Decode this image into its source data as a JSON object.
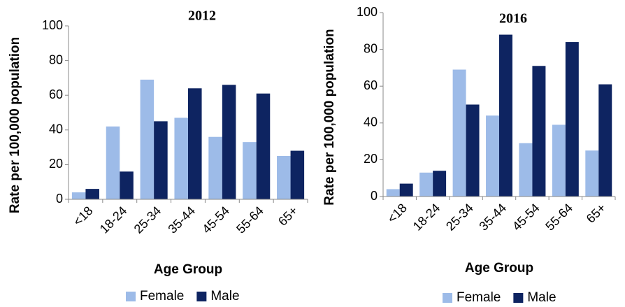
{
  "chart_data": [
    {
      "type": "bar",
      "title": "2012",
      "x_label": "Age Group",
      "y_label": "Rate per 100,000 population",
      "categories": [
        "<18",
        "18-24",
        "25-34",
        "35-44",
        "45-54",
        "55-64",
        "65+"
      ],
      "series": [
        {
          "name": "Female",
          "color": "#9dbbe8",
          "values": [
            4,
            42,
            69,
            47,
            36,
            33,
            25
          ]
        },
        {
          "name": "Male",
          "color": "#0e2461",
          "values": [
            6,
            16,
            45,
            64,
            66,
            61,
            28
          ]
        }
      ],
      "ylim": [
        0,
        100
      ],
      "yticks": [
        0,
        20,
        40,
        60,
        80,
        100
      ],
      "legend": "bottom"
    },
    {
      "type": "bar",
      "title": "2016",
      "x_label": "Age Group",
      "y_label": "Rate per 100,000 population",
      "categories": [
        "<18",
        "18-24",
        "25-34",
        "35-44",
        "45-54",
        "55-64",
        "65+"
      ],
      "series": [
        {
          "name": "Female",
          "color": "#9dbbe8",
          "values": [
            4,
            13,
            69,
            44,
            29,
            39,
            25
          ]
        },
        {
          "name": "Male",
          "color": "#0e2461",
          "values": [
            7,
            14,
            50,
            88,
            71,
            84,
            61
          ]
        }
      ],
      "ylim": [
        0,
        100
      ],
      "yticks": [
        0,
        20,
        40,
        60,
        80,
        100
      ],
      "legend": "bottom"
    }
  ]
}
